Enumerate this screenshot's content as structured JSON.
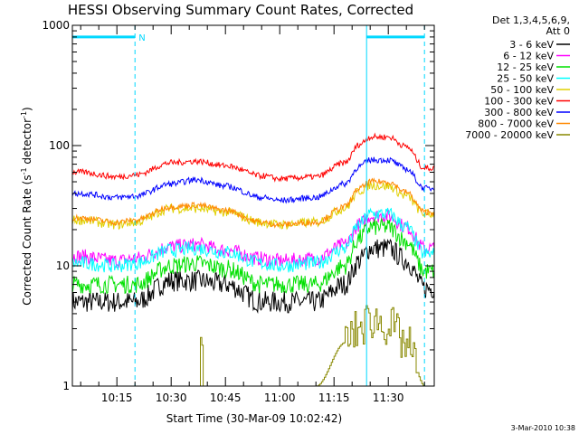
{
  "chart_data": {
    "type": "line",
    "title": "HESSI Observing Summary Count Rates, Corrected",
    "xlabel": "Start Time (30-Mar-09 10:02:42)",
    "ylabel": "Corrected Count Rate (s",
    "ylabel_sup1": "-1",
    "ylabel_mid": " detector",
    "ylabel_sup2": "-1",
    "ylabel_end": ")",
    "yscale": "log",
    "ylim": [
      1,
      1000
    ],
    "y_ticks": [
      "1",
      "10",
      "100",
      "1000"
    ],
    "xlim": [
      "10:02:42",
      "11:42:42"
    ],
    "x_ticks": [
      "10:15",
      "10:30",
      "10:45",
      "11:00",
      "11:15",
      "11:30"
    ],
    "legend": {
      "position": "top-right",
      "header_line1": "Det 1,3,4,5,6,9,",
      "header_line2": "Att 0"
    },
    "annotations": {
      "night_label": "N",
      "solid_vlines": [
        "10:02:42",
        "11:24:00"
      ],
      "dashed_vlines": [
        "10:20:00",
        "11:40:00"
      ],
      "night_bars": [
        [
          "10:02:42",
          "10:20:00"
        ],
        [
          "11:24:00",
          "11:40:00"
        ]
      ],
      "night_bar_level": 800
    },
    "timestamp": "3-Mar-2010 10:38",
    "colors": {
      "axis": "#000000",
      "annotation": "#00d8ff"
    },
    "x": [
      "10:05",
      "10:15",
      "10:20",
      "10:30",
      "10:37",
      "10:45",
      "10:55",
      "11:00",
      "11:10",
      "11:18",
      "11:22",
      "11:25",
      "11:30",
      "11:35",
      "11:40"
    ],
    "series": [
      {
        "name": "3 - 6 keV",
        "color": "#000000",
        "noise": 0.18,
        "values": [
          5,
          5,
          5,
          7.5,
          7.5,
          7,
          5,
          5,
          5,
          7,
          11,
          14,
          14,
          11,
          6.5
        ]
      },
      {
        "name": "6 - 12 keV",
        "color": "#ff00ff",
        "noise": 0.12,
        "values": [
          12,
          11,
          11.5,
          14.5,
          15,
          13.5,
          11.5,
          11,
          11.5,
          15,
          22,
          26,
          26,
          21,
          14
        ]
      },
      {
        "name": "12 - 25 keV",
        "color": "#00e000",
        "noise": 0.15,
        "values": [
          7,
          7,
          7,
          10,
          10.5,
          9.5,
          7,
          7,
          7,
          10,
          17,
          21,
          21,
          16,
          9
        ]
      },
      {
        "name": "25 - 50 keV",
        "color": "#00ffff",
        "noise": 0.12,
        "values": [
          10.5,
          10,
          10.5,
          13.5,
          14,
          13,
          10.5,
          10,
          10.5,
          14,
          22,
          27,
          27,
          21,
          12.5
        ]
      },
      {
        "name": "50 - 100 keV",
        "color": "#e0d000",
        "noise": 0.08,
        "values": [
          24,
          22,
          23,
          30,
          30,
          28,
          23,
          22,
          23,
          30,
          42,
          47,
          46,
          38,
          27
        ]
      },
      {
        "name": "100 - 300 keV",
        "color": "#ff0000",
        "noise": 0.05,
        "values": [
          60,
          55,
          57,
          72,
          74,
          68,
          56,
          53,
          55,
          72,
          102,
          118,
          118,
          98,
          65
        ]
      },
      {
        "name": "300 - 800 keV",
        "color": "#0000ff",
        "noise": 0.05,
        "values": [
          40,
          37,
          38,
          48,
          52,
          46,
          37,
          35,
          37,
          48,
          67,
          76,
          76,
          64,
          44
        ]
      },
      {
        "name": "800 - 7000 keV",
        "color": "#ff8800",
        "noise": 0.05,
        "values": [
          25,
          23,
          24,
          31,
          32,
          29,
          23,
          22,
          23,
          31,
          44,
          50,
          50,
          41,
          28
        ]
      },
      {
        "name": "7000 - 20000 keV",
        "color": "#888800",
        "noise": 0,
        "values": [
          1,
          1,
          1,
          1,
          1,
          1,
          1,
          1,
          1,
          2.3,
          3,
          3.6,
          3.2,
          2.2,
          1
        ]
      }
    ]
  }
}
